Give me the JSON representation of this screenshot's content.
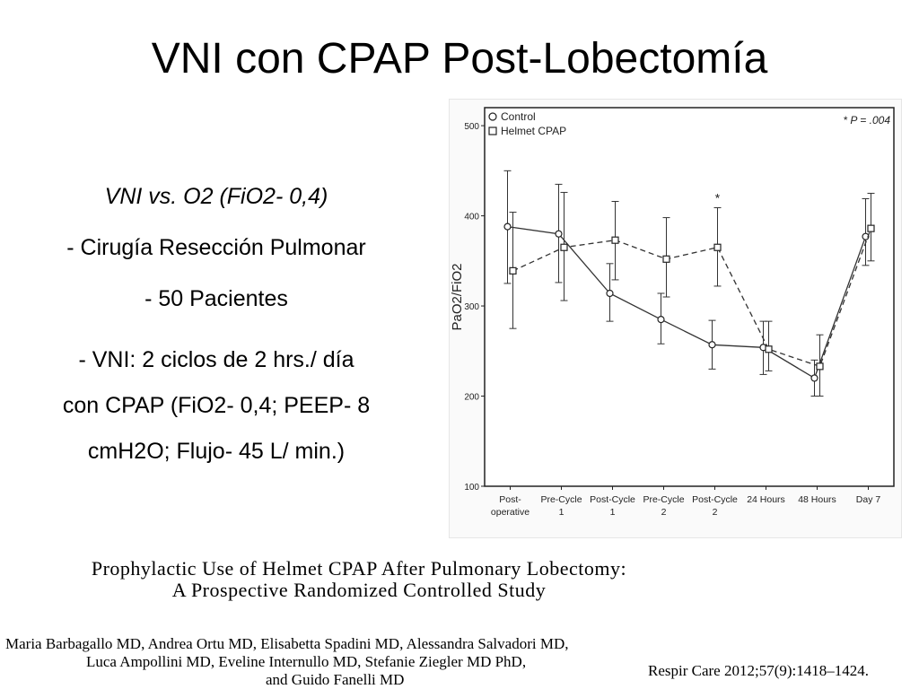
{
  "slide": {
    "title": "VNI con CPAP Post-Lobectomía",
    "bullets": [
      "VNI vs. O2 (FiO2- 0,4)",
      "- Cirugía Resección Pulmonar",
      "- 50 Pacientes",
      "- VNI: 2 ciclos de 2 hrs./ día\ncon CPAP (FiO2- 0,4; PEEP- 8\ncmH2O; Flujo- 45 L/ min.)"
    ]
  },
  "paper": {
    "title_line1": "Prophylactic Use of Helmet CPAP After Pulmonary Lobectomy:",
    "title_line2": "A Prospective Randomized Controlled Study",
    "authors_line1": "Maria Barbagallo MD, Andrea Ortu MD, Elisabetta Spadini MD, Alessandra Salvadori MD,",
    "authors_line2": "Luca Ampollini MD, Eveline Internullo MD, Stefanie Ziegler MD PhD,",
    "authors_line3": "and Guido Fanelli MD",
    "citation": "Respir Care 2012;57(9):1418–1424."
  },
  "chart_data": {
    "type": "line",
    "ylabel": "PaO2/FiO2",
    "ylim": [
      100,
      520
    ],
    "yticks": [
      100,
      200,
      300,
      400,
      500
    ],
    "categories": [
      "Post-\noperative",
      "Pre-Cycle\n1",
      "Post-Cycle\n1",
      "Pre-Cycle\n2",
      "Post-Cycle\n2",
      "24 Hours",
      "48 Hours",
      "Day 7"
    ],
    "annotation": "* P = .004",
    "significance_marker": {
      "category": "Post-Cycle\n2",
      "text": "*"
    },
    "legend_position": "top-left",
    "series": [
      {
        "name": "Control",
        "marker": "circle",
        "line": "solid",
        "values": [
          388,
          380,
          314,
          285,
          257,
          254,
          220,
          377
        ],
        "err_low": [
          325,
          326,
          283,
          258,
          230,
          224,
          200,
          345
        ],
        "err_high": [
          450,
          435,
          347,
          314,
          284,
          283,
          240,
          419
        ]
      },
      {
        "name": "Helmet CPAP",
        "marker": "square",
        "line": "dashed",
        "values": [
          339,
          365,
          373,
          352,
          365,
          252,
          233,
          386
        ],
        "err_low": [
          275,
          306,
          329,
          310,
          322,
          228,
          200,
          350
        ],
        "err_high": [
          404,
          426,
          416,
          398,
          409,
          283,
          268,
          425
        ]
      }
    ]
  }
}
